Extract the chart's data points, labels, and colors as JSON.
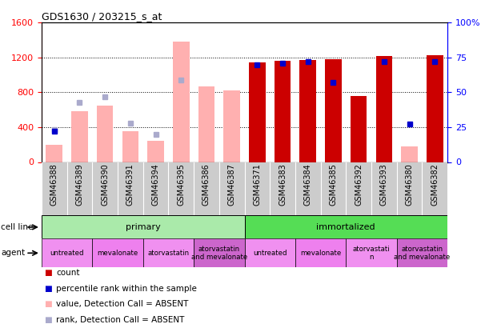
{
  "title": "GDS1630 / 203215_s_at",
  "samples": [
    "GSM46388",
    "GSM46389",
    "GSM46390",
    "GSM46391",
    "GSM46394",
    "GSM46395",
    "GSM46386",
    "GSM46387",
    "GSM46371",
    "GSM46383",
    "GSM46384",
    "GSM46385",
    "GSM46392",
    "GSM46393",
    "GSM46380",
    "GSM46382"
  ],
  "count": [
    null,
    null,
    null,
    null,
    null,
    null,
    null,
    null,
    1140,
    1160,
    1170,
    1180,
    760,
    1220,
    null,
    1230
  ],
  "percentile_rank": [
    22,
    null,
    null,
    null,
    null,
    null,
    null,
    null,
    70,
    71,
    72,
    57,
    null,
    72,
    27,
    72
  ],
  "value_absent": [
    200,
    580,
    650,
    350,
    240,
    1380,
    870,
    820,
    null,
    null,
    null,
    null,
    null,
    null,
    180,
    null
  ],
  "rank_absent": [
    23,
    43,
    47,
    28,
    20,
    59,
    null,
    null,
    null,
    null,
    null,
    null,
    null,
    null,
    null,
    null
  ],
  "ylim_left": [
    0,
    1600
  ],
  "ylim_right": [
    0,
    100
  ],
  "yticks_left": [
    0,
    400,
    800,
    1200,
    1600
  ],
  "yticks_right": [
    0,
    25,
    50,
    75,
    100
  ],
  "agent_groups": [
    {
      "label": "untreated",
      "start": 0,
      "end": 2
    },
    {
      "label": "mevalonate",
      "start": 2,
      "end": 4
    },
    {
      "label": "atorvastatin",
      "start": 4,
      "end": 6
    },
    {
      "label": "atorvastatin\nand mevalonate",
      "start": 6,
      "end": 8
    },
    {
      "label": "untreated",
      "start": 8,
      "end": 10
    },
    {
      "label": "mevalonate",
      "start": 10,
      "end": 12
    },
    {
      "label": "atorvastati\nn",
      "start": 12,
      "end": 14
    },
    {
      "label": "atorvastatin\nand mevalonate",
      "start": 14,
      "end": 16
    }
  ],
  "color_count": "#cc0000",
  "color_percentile": "#0000cc",
  "color_value_absent": "#ffb0b0",
  "color_rank_absent": "#aaaacc",
  "color_primary": "#aaeaaa",
  "color_immortalized": "#55dd55",
  "color_agent": "#ee88ee",
  "color_xticklabel_bg": "#cccccc",
  "color_bg": "#ffffff"
}
